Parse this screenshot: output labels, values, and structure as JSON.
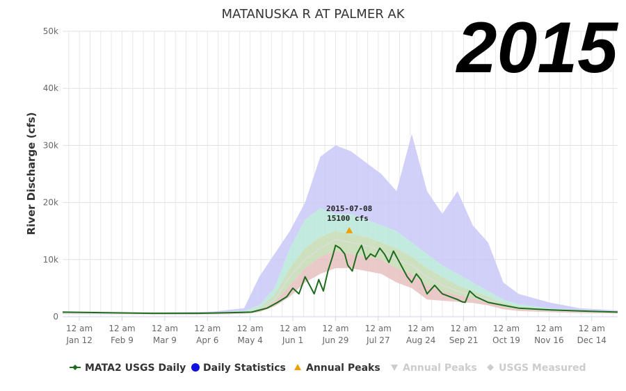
{
  "chart_data": {
    "type": "area",
    "title": "MATANUSKA R AT PALMER AK",
    "year_label": "2015",
    "ylabel": "River Discharge (cfs)",
    "ylim": [
      0,
      50000
    ],
    "y_ticks": [
      "0",
      "10k",
      "20k",
      "30k",
      "40k",
      "50k"
    ],
    "x_ticks": [
      {
        "doy": 12,
        "line1": "12 am",
        "line2": "Jan 12"
      },
      {
        "doy": 40,
        "line1": "12 am",
        "line2": "Feb 9"
      },
      {
        "doy": 68,
        "line1": "12 am",
        "line2": "Mar 9"
      },
      {
        "doy": 96,
        "line1": "12 am",
        "line2": "Apr 6"
      },
      {
        "doy": 124,
        "line1": "12 am",
        "line2": "May 4"
      },
      {
        "doy": 152,
        "line1": "12 am",
        "line2": "Jun 1"
      },
      {
        "doy": 180,
        "line1": "12 am",
        "line2": "Jun 29"
      },
      {
        "doy": 208,
        "line1": "12 am",
        "line2": "Jul 27"
      },
      {
        "doy": 236,
        "line1": "12 am",
        "line2": "Aug 24"
      },
      {
        "doy": 264,
        "line1": "12 am",
        "line2": "Sep 21"
      },
      {
        "doy": 292,
        "line1": "12 am",
        "line2": "Oct 19"
      },
      {
        "doy": 320,
        "line1": "12 am",
        "line2": "Nov 16"
      },
      {
        "doy": 348,
        "line1": "12 am",
        "line2": "Dec 14"
      }
    ],
    "grid": true,
    "legend_position": "bottom",
    "colors": {
      "observed": "#1e6b1e",
      "max_band": "#c8c8f8",
      "p90_band": "#b9e6d9",
      "p75_band": "#c4dcb4",
      "p25_band": "#f0e6b0",
      "min_band": "#e6c0c0",
      "median": "#dddddd",
      "peak": "#f0a000",
      "statistics": "#1010e0"
    },
    "stats": {
      "x": [
        1,
        60,
        100,
        120,
        130,
        140,
        150,
        160,
        170,
        180,
        190,
        200,
        210,
        220,
        230,
        240,
        250,
        260,
        270,
        280,
        290,
        300,
        320,
        340,
        365
      ],
      "max": [
        800,
        700,
        900,
        1500,
        7000,
        11000,
        15000,
        20000,
        28000,
        30000,
        29000,
        27000,
        25000,
        22000,
        32000,
        22000,
        18000,
        22000,
        16000,
        13000,
        6000,
        4000,
        2500,
        1500,
        1100
      ],
      "p90": [
        700,
        600,
        700,
        1000,
        2000,
        5000,
        12000,
        17000,
        19000,
        18000,
        18000,
        17000,
        16000,
        15000,
        13000,
        11000,
        9000,
        7500,
        6000,
        4500,
        3000,
        2200,
        1500,
        1100,
        900
      ],
      "p75": [
        650,
        550,
        600,
        800,
        1500,
        3800,
        8500,
        12000,
        14000,
        15000,
        14500,
        14000,
        13000,
        12000,
        10500,
        8500,
        7000,
        5500,
        4500,
        3500,
        2400,
        1800,
        1300,
        1000,
        800
      ],
      "median": [
        600,
        500,
        550,
        700,
        1200,
        3000,
        7000,
        10000,
        12000,
        13500,
        13000,
        12500,
        11500,
        10000,
        9000,
        7000,
        5500,
        4500,
        3800,
        3000,
        2000,
        1500,
        1100,
        900,
        700
      ],
      "p25": [
        550,
        450,
        500,
        600,
        1000,
        2500,
        5500,
        8500,
        10500,
        11500,
        11000,
        10500,
        10000,
        8500,
        7500,
        5500,
        4500,
        3800,
        3200,
        2500,
        1700,
        1300,
        1000,
        800,
        650
      ],
      "min": [
        450,
        400,
        400,
        500,
        800,
        1800,
        3500,
        6000,
        7500,
        8500,
        8500,
        8000,
        7500,
        6000,
        5000,
        3000,
        2800,
        2600,
        2400,
        2000,
        1300,
        1000,
        800,
        650,
        550
      ]
    },
    "observed": {
      "name": "MATA2 USGS Daily",
      "x": [
        1,
        30,
        60,
        90,
        110,
        125,
        135,
        142,
        148,
        152,
        156,
        160,
        163,
        166,
        169,
        172,
        175,
        178,
        180,
        183,
        186,
        188,
        191,
        194,
        197,
        200,
        203,
        206,
        209,
        212,
        215,
        218,
        221,
        224,
        227,
        230,
        233,
        236,
        240,
        245,
        250,
        255,
        260,
        263,
        265,
        268,
        272,
        280,
        290,
        300,
        320,
        340,
        365
      ],
      "y": [
        800,
        700,
        600,
        600,
        700,
        800,
        1500,
        2500,
        3500,
        5000,
        4000,
        7000,
        5500,
        4000,
        6500,
        4500,
        8000,
        10500,
        12500,
        12000,
        11000,
        9000,
        8000,
        11000,
        12500,
        10000,
        11000,
        10500,
        12000,
        11000,
        9500,
        11500,
        10000,
        8500,
        7000,
        6000,
        7500,
        6500,
        4000,
        5500,
        4000,
        3500,
        3000,
        2600,
        2500,
        4500,
        3500,
        2500,
        2000,
        1500,
        1200,
        1000,
        800
      ]
    },
    "peak": {
      "date": "2015-07-08",
      "doy": 189,
      "value": 15100,
      "label_line1": "2015-07-08",
      "label_line2": "15100 cfs"
    },
    "legend": [
      {
        "label": "MATA2 USGS Daily",
        "symbol": "line-diamond",
        "active": true
      },
      {
        "label": "Daily Statistics",
        "symbol": "circle",
        "active": true
      },
      {
        "label": "Annual Peaks",
        "symbol": "triangle-up",
        "active": true
      },
      {
        "label": "Annual Peaks",
        "symbol": "triangle-down",
        "active": false
      },
      {
        "label": "USGS Measured",
        "symbol": "diamond",
        "active": false
      }
    ]
  }
}
